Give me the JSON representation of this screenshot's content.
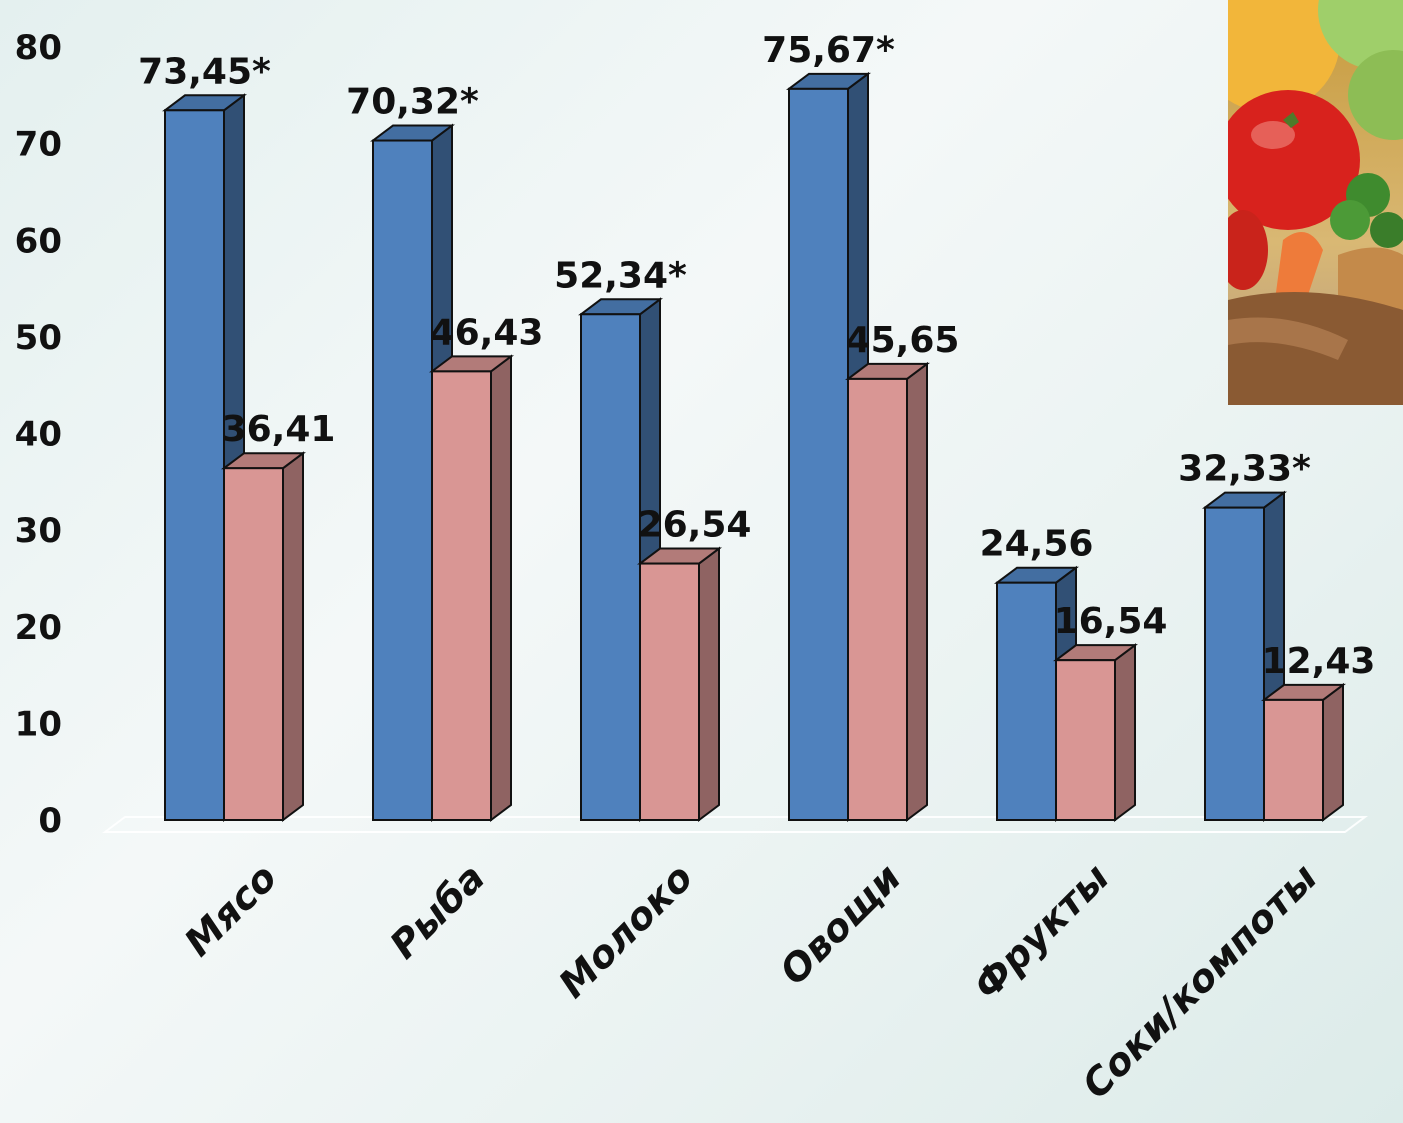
{
  "chart_data": {
    "type": "bar",
    "title": "",
    "xlabel": "",
    "ylabel": "",
    "ylim": [
      0,
      80
    ],
    "yticks": [
      0,
      10,
      20,
      30,
      40,
      50,
      60,
      70,
      80
    ],
    "categories": [
      "Мясо",
      "Рыба",
      "Молоко",
      "Овощи",
      "Фрукты",
      "Соки/компоты"
    ],
    "series": [
      {
        "values": [
          73.45,
          70.32,
          52.34,
          75.67,
          24.56,
          32.33
        ],
        "labels": [
          "73,45*",
          "70,32*",
          "52,34*",
          "75,67*",
          "24,56",
          "32,33*"
        ],
        "color": "#4f81bd"
      },
      {
        "values": [
          36.41,
          46.43,
          26.54,
          45.65,
          16.54,
          12.43
        ],
        "labels": [
          "36,41",
          "46,43",
          "26,54",
          "45,65",
          "16,54",
          "12,43"
        ],
        "color": "#d99694"
      }
    ],
    "grid": false,
    "legend": "none",
    "style": "3d-clustered-column"
  },
  "decoration": {
    "photo_icon": "vegetables-photo-icon"
  }
}
